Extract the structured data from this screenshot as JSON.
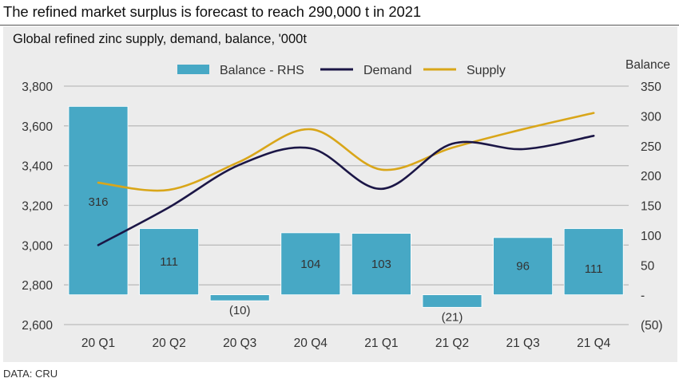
{
  "headline": "The refined market surplus is forecast to reach 290,000 t in 2021",
  "source": "DATA: CRU",
  "colors": {
    "balance": "#47a8c5",
    "demand": "#1b1646",
    "supply": "#d9a619",
    "grid": "#bdbdbd",
    "panel": "#ececec"
  },
  "chart_data": {
    "type": "bar+line",
    "title": "Global refined zinc supply, demand, balance, '000t",
    "categories": [
      "20 Q1",
      "20 Q2",
      "20 Q3",
      "20 Q4",
      "21 Q1",
      "21 Q2",
      "21 Q3",
      "21 Q4"
    ],
    "series": [
      {
        "name": "Balance - RHS",
        "type": "bar",
        "axis": "right",
        "values": [
          316,
          111,
          -10,
          104,
          103,
          -21,
          96,
          111
        ],
        "data_labels": [
          "316",
          "111",
          "(10)",
          "104",
          "103",
          "(21)",
          "96",
          "111"
        ]
      },
      {
        "name": "Demand",
        "type": "line",
        "axis": "left",
        "smooth": true,
        "values": [
          3000,
          3190,
          3405,
          3487,
          3283,
          3510,
          3483,
          3550
        ]
      },
      {
        "name": "Supply",
        "type": "line",
        "axis": "left",
        "smooth": true,
        "values": [
          3314,
          3278,
          3420,
          3583,
          3380,
          3490,
          3583,
          3665
        ]
      }
    ],
    "left_axis": {
      "label": "",
      "ylim": [
        2600,
        3800
      ],
      "ticks": [
        2600,
        2800,
        3000,
        3200,
        3400,
        3600,
        3800
      ],
      "tick_labels": [
        "2,600",
        "2,800",
        "3,000",
        "3,200",
        "3,400",
        "3,600",
        "3,800"
      ]
    },
    "right_axis": {
      "label": "Balance",
      "ylim": [
        -50,
        350
      ],
      "ticks": [
        -50,
        0,
        50,
        100,
        150,
        200,
        250,
        300,
        350
      ],
      "tick_labels": [
        "(50)",
        "-",
        "50",
        "100",
        "150",
        "200",
        "250",
        "300",
        "350"
      ]
    },
    "xlabel": "",
    "grid": true,
    "legend": {
      "placement": "top-center",
      "entries": [
        "Balance - RHS",
        "Demand",
        "Supply"
      ]
    }
  }
}
